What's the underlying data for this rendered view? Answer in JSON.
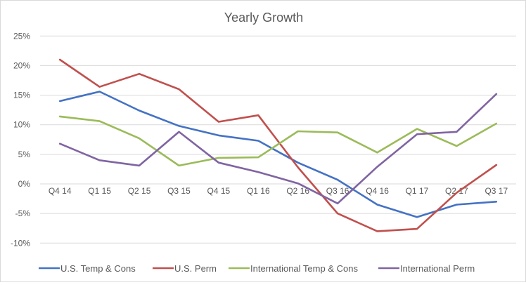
{
  "chart_data": {
    "type": "line",
    "title": "Yearly Growth",
    "xlabel": "",
    "ylabel": "",
    "categories": [
      "Q4 14",
      "Q1 15",
      "Q2 15",
      "Q3 15",
      "Q4 15",
      "Q1 16",
      "Q2 16",
      "Q3 16",
      "Q4 16",
      "Q1 17",
      "Q2 17",
      "Q3 17"
    ],
    "ylim": [
      -10,
      25
    ],
    "yticks": [
      -10,
      -5,
      0,
      5,
      10,
      15,
      20,
      25
    ],
    "ytick_labels": [
      "-10%",
      "-5%",
      "0%",
      "5%",
      "10%",
      "15%",
      "20%",
      "25%"
    ],
    "grid": true,
    "legend_position": "bottom",
    "series": [
      {
        "name": "U.S. Temp & Cons",
        "color": "#4472c4",
        "values": [
          14.0,
          15.6,
          12.4,
          9.8,
          8.2,
          7.3,
          3.6,
          0.7,
          -3.5,
          -5.6,
          -3.5,
          -3.0
        ]
      },
      {
        "name": "U.S. Perm",
        "color": "#c0504d",
        "values": [
          21.0,
          16.4,
          18.6,
          16.0,
          10.5,
          11.6,
          2.8,
          -5.0,
          -8.0,
          -7.6,
          -1.5,
          3.2
        ]
      },
      {
        "name": "International Temp & Cons",
        "color": "#9bbb59",
        "values": [
          11.4,
          10.6,
          7.7,
          3.1,
          4.4,
          4.5,
          8.9,
          8.7,
          5.3,
          9.3,
          6.4,
          10.2
        ]
      },
      {
        "name": "International Perm",
        "color": "#8064a2",
        "values": [
          6.8,
          4.0,
          3.1,
          8.8,
          3.6,
          2.0,
          0.1,
          -3.3,
          2.9,
          8.4,
          8.8,
          15.2
        ]
      }
    ]
  }
}
